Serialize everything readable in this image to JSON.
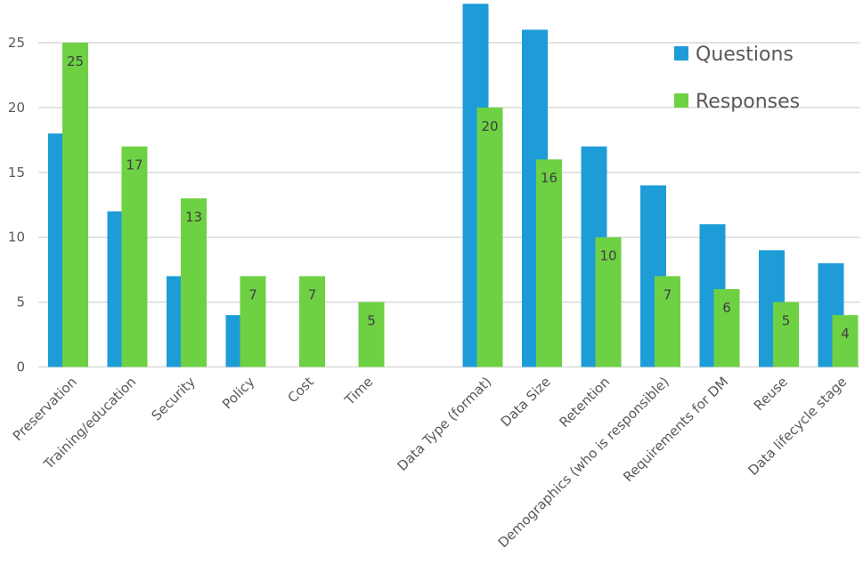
{
  "chart_data": {
    "type": "bar",
    "categories": [
      "Preservation",
      "Training/education",
      "Security",
      "Policy",
      "Cost",
      "Time",
      "",
      "Data Type (format)",
      "Data Size",
      "Retention",
      "Demographics (who is responsible)",
      "Requirements for DM",
      "Reuse",
      "Data lifecycle stage"
    ],
    "series": [
      {
        "name": "Questions",
        "color": "#1e9cd8",
        "values": [
          18,
          12,
          7,
          4,
          0,
          0,
          null,
          28,
          26,
          17,
          14,
          11,
          9,
          8
        ],
        "data_labels": false
      },
      {
        "name": "Responses",
        "color": "#6dd143",
        "values": [
          25,
          17,
          13,
          7,
          7,
          5,
          null,
          20,
          16,
          10,
          7,
          6,
          5,
          4
        ],
        "data_labels": true
      }
    ],
    "yticks": [
      0,
      5,
      10,
      15,
      20,
      25
    ],
    "ylim": [
      0,
      28
    ],
    "grid": true,
    "legend": "top-right",
    "title": "",
    "xlabel": "",
    "ylabel": ""
  }
}
